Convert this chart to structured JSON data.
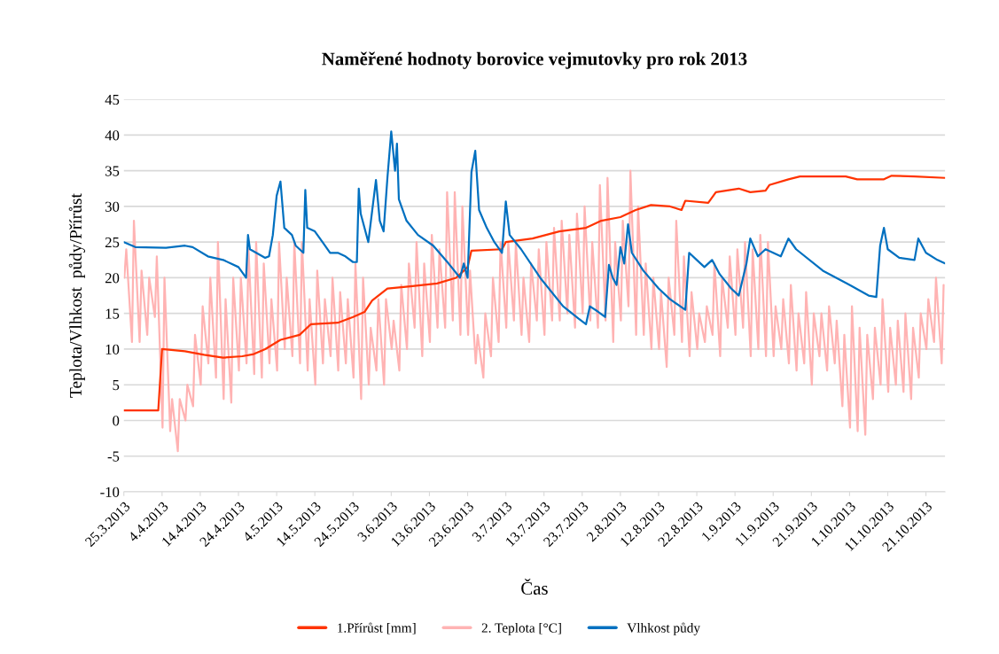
{
  "chart_data": {
    "type": "line",
    "title": "Naměřené hodnoty borovice vejmutovky pro rok 2013",
    "xlabel": "Čas",
    "ylabel": "Teplota/Vlhkost  půdy/Přírůst",
    "xlim": [
      "2013-03-25",
      "2013-10-26"
    ],
    "ylim": [
      -10,
      45
    ],
    "yticks": [
      -10,
      -5,
      0,
      5,
      10,
      15,
      20,
      25,
      30,
      35,
      40,
      45
    ],
    "xticks": [
      {
        "value": "2013-03-25",
        "label": "25.3.2013"
      },
      {
        "value": "2013-04-04",
        "label": "4.4.2013"
      },
      {
        "value": "2013-04-14",
        "label": "14.4.2013"
      },
      {
        "value": "2013-04-24",
        "label": "24.4.2013"
      },
      {
        "value": "2013-05-04",
        "label": "4.5.2013"
      },
      {
        "value": "2013-05-14",
        "label": "14.5.2013"
      },
      {
        "value": "2013-05-24",
        "label": "24.5.2013"
      },
      {
        "value": "2013-06-03",
        "label": "3.6.2013"
      },
      {
        "value": "2013-06-13",
        "label": "13.6.2013"
      },
      {
        "value": "2013-06-23",
        "label": "23.6.2013"
      },
      {
        "value": "2013-07-03",
        "label": "3.7.2013"
      },
      {
        "value": "2013-07-13",
        "label": "13.7.2013"
      },
      {
        "value": "2013-07-23",
        "label": "23.7.2013"
      },
      {
        "value": "2013-08-02",
        "label": "2.8.2013"
      },
      {
        "value": "2013-08-12",
        "label": "12.8.2013"
      },
      {
        "value": "2013-08-22",
        "label": "22.8.2013"
      },
      {
        "value": "2013-09-01",
        "label": "1.9.2013"
      },
      {
        "value": "2013-09-11",
        "label": "11.9.2013"
      },
      {
        "value": "2013-09-21",
        "label": "21.9.2013"
      },
      {
        "value": "2013-10-01",
        "label": "1.10.2013"
      },
      {
        "value": "2013-10-11",
        "label": "11.10.2013"
      },
      {
        "value": "2013-10-21",
        "label": "21.10.2013"
      }
    ],
    "grid": "y",
    "legend": "bottom",
    "line_style": "solid",
    "marker": "none",
    "series": [
      {
        "name": "1.Přírůst [mm]",
        "color": "#ff3300",
        "x": [
          "2013-03-25",
          "2013-04-03",
          "2013-04-04",
          "2013-04-10",
          "2013-04-15",
          "2013-04-20",
          "2013-04-25",
          "2013-04-28",
          "2013-05-01",
          "2013-05-05",
          "2013-05-10",
          "2013-05-13",
          "2013-05-20",
          "2013-05-24",
          "2013-05-27",
          "2013-05-29",
          "2013-06-02",
          "2013-06-08",
          "2013-06-15",
          "2013-06-20",
          "2013-06-23",
          "2013-06-24",
          "2013-07-02",
          "2013-07-03",
          "2013-07-10",
          "2013-07-17",
          "2013-07-24",
          "2013-07-28",
          "2013-08-02",
          "2013-08-06",
          "2013-08-10",
          "2013-08-15",
          "2013-08-18",
          "2013-08-19",
          "2013-08-25",
          "2013-08-27",
          "2013-09-02",
          "2013-09-05",
          "2013-09-09",
          "2013-09-10",
          "2013-09-15",
          "2013-09-18",
          "2013-09-30",
          "2013-10-03",
          "2013-10-10",
          "2013-10-12",
          "2013-10-18",
          "2013-10-26"
        ],
        "values": [
          1.4,
          1.4,
          10,
          9.7,
          9.2,
          8.8,
          9.0,
          9.3,
          10,
          11.3,
          12,
          13.5,
          13.7,
          14.5,
          15.2,
          16.8,
          18.5,
          18.8,
          19.2,
          20,
          21.5,
          23.8,
          24,
          25,
          25.5,
          26.5,
          27,
          28,
          28.5,
          29.5,
          30.2,
          30,
          29.5,
          30.8,
          30.5,
          32,
          32.5,
          32,
          32.2,
          33,
          33.8,
          34.2,
          34.2,
          33.8,
          33.8,
          34.3,
          34.2,
          34
        ]
      },
      {
        "name": "2. Teplota [°C]",
        "color": "#ffb3b3",
        "x": [
          "2013-03-25T03:00",
          "2013-03-25T15:00",
          "2013-03-27T03:00",
          "2013-03-27T15:00",
          "2013-03-29T03:00",
          "2013-03-29T15:00",
          "2013-03-31T03:00",
          "2013-03-31T15:00",
          "2013-04-02T03:00",
          "2013-04-02T15:00",
          "2013-04-04T03:00",
          "2013-04-04T15:00",
          "2013-04-06T03:00",
          "2013-04-06T15:00",
          "2013-04-08T03:00",
          "2013-04-08T15:00",
          "2013-04-10T03:00",
          "2013-04-10T15:00",
          "2013-04-12T03:00",
          "2013-04-12T15:00",
          "2013-04-14T03:00",
          "2013-04-14T15:00",
          "2013-04-16T03:00",
          "2013-04-16T15:00",
          "2013-04-18T03:00",
          "2013-04-18T15:00",
          "2013-04-20T03:00",
          "2013-04-20T15:00",
          "2013-04-22T03:00",
          "2013-04-22T15:00",
          "2013-04-24T03:00",
          "2013-04-24T15:00",
          "2013-04-26T03:00",
          "2013-04-26T15:00",
          "2013-04-28T03:00",
          "2013-04-28T15:00",
          "2013-04-30T03:00",
          "2013-04-30T15:00",
          "2013-05-02T03:00",
          "2013-05-02T15:00",
          "2013-05-04T03:00",
          "2013-05-04T15:00",
          "2013-05-06T03:00",
          "2013-05-06T15:00",
          "2013-05-08T03:00",
          "2013-05-08T15:00",
          "2013-05-10T03:00",
          "2013-05-10T15:00",
          "2013-05-12T03:00",
          "2013-05-12T15:00",
          "2013-05-14T03:00",
          "2013-05-14T15:00",
          "2013-05-16T03:00",
          "2013-05-16T15:00",
          "2013-05-18T03:00",
          "2013-05-18T15:00",
          "2013-05-20T03:00",
          "2013-05-20T15:00",
          "2013-05-22T03:00",
          "2013-05-22T15:00",
          "2013-05-24T03:00",
          "2013-05-24T15:00",
          "2013-05-26T03:00",
          "2013-05-26T15:00",
          "2013-05-28T03:00",
          "2013-05-28T15:00",
          "2013-05-30T03:00",
          "2013-05-30T15:00",
          "2013-06-01T03:00",
          "2013-06-01T15:00",
          "2013-06-03T03:00",
          "2013-06-03T15:00",
          "2013-06-05T03:00",
          "2013-06-05T15:00",
          "2013-06-07T03:00",
          "2013-06-07T15:00",
          "2013-06-09T03:00",
          "2013-06-09T15:00",
          "2013-06-11T03:00",
          "2013-06-11T15:00",
          "2013-06-13T03:00",
          "2013-06-13T15:00",
          "2013-06-15T03:00",
          "2013-06-15T15:00",
          "2013-06-17T03:00",
          "2013-06-17T15:00",
          "2013-06-19T03:00",
          "2013-06-19T15:00",
          "2013-06-21T03:00",
          "2013-06-21T15:00",
          "2013-06-23T03:00",
          "2013-06-23T15:00",
          "2013-06-25T03:00",
          "2013-06-25T15:00",
          "2013-06-27T03:00",
          "2013-06-27T15:00",
          "2013-06-29T03:00",
          "2013-06-29T15:00",
          "2013-07-01T03:00",
          "2013-07-01T15:00",
          "2013-07-03T03:00",
          "2013-07-03T15:00",
          "2013-07-05T03:00",
          "2013-07-05T15:00",
          "2013-07-07T03:00",
          "2013-07-07T15:00",
          "2013-07-09T03:00",
          "2013-07-09T15:00",
          "2013-07-11T03:00",
          "2013-07-11T15:00",
          "2013-07-13T03:00",
          "2013-07-13T15:00",
          "2013-07-15T03:00",
          "2013-07-15T15:00",
          "2013-07-17T03:00",
          "2013-07-17T15:00",
          "2013-07-19T03:00",
          "2013-07-19T15:00",
          "2013-07-21T03:00",
          "2013-07-21T15:00",
          "2013-07-23T03:00",
          "2013-07-23T15:00",
          "2013-07-25T03:00",
          "2013-07-25T15:00",
          "2013-07-27T03:00",
          "2013-07-27T15:00",
          "2013-07-29T03:00",
          "2013-07-29T15:00",
          "2013-07-31T03:00",
          "2013-07-31T15:00",
          "2013-08-02T03:00",
          "2013-08-02T15:00",
          "2013-08-04T03:00",
          "2013-08-04T15:00",
          "2013-08-06T03:00",
          "2013-08-06T15:00",
          "2013-08-08T03:00",
          "2013-08-08T15:00",
          "2013-08-10T03:00",
          "2013-08-10T15:00",
          "2013-08-12T03:00",
          "2013-08-12T15:00",
          "2013-08-14T03:00",
          "2013-08-14T15:00",
          "2013-08-16T03:00",
          "2013-08-16T15:00",
          "2013-08-18T03:00",
          "2013-08-18T15:00",
          "2013-08-20T03:00",
          "2013-08-20T15:00",
          "2013-08-22T03:00",
          "2013-08-22T15:00",
          "2013-08-24T03:00",
          "2013-08-24T15:00",
          "2013-08-26T03:00",
          "2013-08-26T15:00",
          "2013-08-28T03:00",
          "2013-08-28T15:00",
          "2013-08-30T03:00",
          "2013-08-30T15:00",
          "2013-09-01T03:00",
          "2013-09-01T15:00",
          "2013-09-03T03:00",
          "2013-09-03T15:00",
          "2013-09-05T03:00",
          "2013-09-05T15:00",
          "2013-09-07T03:00",
          "2013-09-07T15:00",
          "2013-09-09T03:00",
          "2013-09-09T15:00",
          "2013-09-11T03:00",
          "2013-09-11T15:00",
          "2013-09-13T03:00",
          "2013-09-13T15:00",
          "2013-09-15T03:00",
          "2013-09-15T15:00",
          "2013-09-17T03:00",
          "2013-09-17T15:00",
          "2013-09-19T03:00",
          "2013-09-19T15:00",
          "2013-09-21T03:00",
          "2013-09-21T15:00",
          "2013-09-23T03:00",
          "2013-09-23T15:00",
          "2013-09-25T03:00",
          "2013-09-25T15:00",
          "2013-09-27T03:00",
          "2013-09-27T15:00",
          "2013-09-29T03:00",
          "2013-09-29T15:00",
          "2013-10-01T03:00",
          "2013-10-01T15:00",
          "2013-10-03T03:00",
          "2013-10-03T15:00",
          "2013-10-05T03:00",
          "2013-10-05T15:00",
          "2013-10-07T03:00",
          "2013-10-07T15:00",
          "2013-10-09T03:00",
          "2013-10-09T15:00",
          "2013-10-11T03:00",
          "2013-10-11T15:00",
          "2013-10-13T03:00",
          "2013-10-13T15:00",
          "2013-10-15T03:00",
          "2013-10-15T15:00",
          "2013-10-17T03:00",
          "2013-10-17T15:00",
          "2013-10-19T03:00",
          "2013-10-19T15:00",
          "2013-10-21T03:00",
          "2013-10-21T15:00",
          "2013-10-23T03:00",
          "2013-10-23T15:00",
          "2013-10-25T03:00",
          "2013-10-25T15:00"
        ],
        "values": [
          20,
          24,
          11,
          28,
          11,
          21,
          12,
          20,
          14.5,
          23,
          -1,
          20,
          -1.5,
          3,
          -4.3,
          3,
          0,
          5,
          2,
          12,
          5,
          16,
          8,
          20,
          6,
          25,
          3,
          17,
          2.5,
          20,
          7,
          20,
          8,
          24,
          6.5,
          25,
          6,
          22,
          8,
          17,
          7,
          25,
          10,
          20,
          9,
          25,
          8,
          25,
          7,
          17,
          5,
          21,
          8,
          17,
          9,
          20,
          7,
          18,
          8,
          17,
          6,
          22,
          3,
          20,
          5,
          13,
          7,
          17,
          5,
          17,
          10,
          14,
          7,
          19,
          10,
          22,
          13,
          25,
          9,
          22,
          11,
          26,
          13,
          24,
          13,
          32,
          14,
          32,
          12,
          30,
          12,
          21,
          8,
          12,
          6,
          15,
          9,
          20,
          11,
          25,
          13,
          25,
          14,
          25,
          12,
          20,
          11,
          22,
          14,
          24,
          12,
          25,
          14,
          27,
          14,
          28,
          15,
          26,
          13,
          29,
          15,
          30,
          14,
          25,
          13,
          33,
          14,
          34,
          11,
          25,
          14,
          28,
          16,
          35,
          12,
          30,
          12,
          22,
          10,
          20,
          10,
          18,
          7.5,
          20,
          12,
          28,
          11,
          23,
          9,
          18,
          10,
          15,
          11,
          16,
          12,
          22,
          9,
          20,
          13,
          23,
          12,
          24,
          13,
          25,
          9,
          24,
          10,
          26,
          9,
          25,
          9,
          16,
          10,
          17,
          8,
          19,
          7,
          15,
          8,
          18,
          5,
          15,
          9,
          15,
          7,
          16,
          8,
          14,
          2,
          12,
          -1,
          16,
          -1.5,
          13,
          -2,
          12,
          3,
          13,
          5,
          17,
          4,
          13,
          5,
          14,
          4,
          15,
          3,
          13,
          6,
          15,
          10,
          17,
          11,
          20,
          8,
          19
        ]
      },
      {
        "name": "Vlhkost půdy",
        "color": "#0070c0",
        "x": [
          "2013-03-25",
          "2013-03-28",
          "2013-04-05",
          "2013-04-10",
          "2013-04-12",
          "2013-04-16",
          "2013-04-20",
          "2013-04-24",
          "2013-04-26",
          "2013-04-26T12:00",
          "2013-04-27",
          "2013-05-01",
          "2013-05-02",
          "2013-05-03",
          "2013-05-04",
          "2013-05-05",
          "2013-05-06",
          "2013-05-08",
          "2013-05-09",
          "2013-05-11",
          "2013-05-11T12:00",
          "2013-05-12",
          "2013-05-14",
          "2013-05-16",
          "2013-05-18",
          "2013-05-20",
          "2013-05-22",
          "2013-05-24",
          "2013-05-25",
          "2013-05-25T12:00",
          "2013-05-26",
          "2013-05-28",
          "2013-05-30",
          "2013-05-31",
          "2013-06-01",
          "2013-06-02",
          "2013-06-03",
          "2013-06-04",
          "2013-06-04T12:00",
          "2013-06-05",
          "2013-06-07",
          "2013-06-10",
          "2013-06-14",
          "2013-06-18",
          "2013-06-21",
          "2013-06-22",
          "2013-06-23",
          "2013-06-24",
          "2013-06-25",
          "2013-06-26",
          "2013-06-28",
          "2013-06-30",
          "2013-07-02",
          "2013-07-03",
          "2013-07-04",
          "2013-07-07",
          "2013-07-12",
          "2013-07-18",
          "2013-07-22",
          "2013-07-24",
          "2013-07-25",
          "2013-07-27",
          "2013-07-29",
          "2013-07-30",
          "2013-07-31",
          "2013-08-01",
          "2013-08-02",
          "2013-08-03",
          "2013-08-04",
          "2013-08-05",
          "2013-08-08",
          "2013-08-12",
          "2013-08-15",
          "2013-08-19",
          "2013-08-20",
          "2013-08-22",
          "2013-08-24",
          "2013-08-26",
          "2013-08-28",
          "2013-08-31",
          "2013-09-02",
          "2013-09-04",
          "2013-09-05",
          "2013-09-07",
          "2013-09-09",
          "2013-09-11",
          "2013-09-13",
          "2013-09-15",
          "2013-09-17",
          "2013-09-24",
          "2013-10-01",
          "2013-10-06",
          "2013-10-08",
          "2013-10-09",
          "2013-10-10",
          "2013-10-11",
          "2013-10-14",
          "2013-10-18",
          "2013-10-19",
          "2013-10-21",
          "2013-10-24",
          "2013-10-26"
        ],
        "values": [
          25,
          24.3,
          24.2,
          24.5,
          24.3,
          23,
          22.5,
          21.5,
          20,
          26,
          24,
          22.8,
          23,
          26,
          31.5,
          33.5,
          27,
          26,
          24.5,
          23.5,
          32.3,
          27,
          26.5,
          25,
          23.5,
          23.5,
          23,
          22.2,
          22.2,
          32.5,
          29,
          25,
          33.7,
          28,
          26.5,
          34,
          40.5,
          35,
          38.8,
          31,
          28,
          26,
          24.5,
          22,
          20,
          22,
          20,
          34.8,
          37.8,
          29.5,
          27,
          25,
          23.5,
          30.7,
          26,
          24,
          20,
          16,
          14.3,
          13.5,
          16,
          15.3,
          14.5,
          21.8,
          20,
          19,
          24.3,
          22,
          27.5,
          23.5,
          21,
          18.5,
          17,
          15.5,
          23.5,
          22.5,
          21.5,
          22.5,
          20.5,
          18.5,
          17.5,
          22,
          25.5,
          23,
          24,
          23.5,
          23,
          25.5,
          24,
          21,
          19,
          17.5,
          17.3,
          24.5,
          27,
          24,
          22.8,
          22.5,
          25.5,
          23.5,
          22.5,
          22
        ]
      }
    ]
  }
}
